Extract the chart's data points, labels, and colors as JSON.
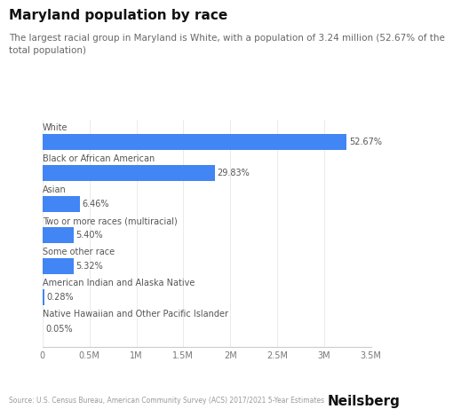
{
  "title": "Maryland population by race",
  "subtitle": "The largest racial group in Maryland is White, with a population of 3.24 million (52.67% of the\ntotal population)",
  "categories": [
    "White",
    "Black or African American",
    "Asian",
    "Two or more races (multiracial)",
    "Some other race",
    "American Indian and Alaska Native",
    "Native Hawaiian and Other Pacific Islander"
  ],
  "values": [
    3240000,
    1836000,
    397800,
    332400,
    327600,
    17220,
    3075
  ],
  "percentages": [
    "52.67%",
    "29.83%",
    "6.46%",
    "5.40%",
    "5.32%",
    "0.28%",
    "0.05%"
  ],
  "bar_color": "#4285F4",
  "background_color": "#ffffff",
  "xlim": [
    0,
    3500000
  ],
  "xticks": [
    0,
    500000,
    1000000,
    1500000,
    2000000,
    2500000,
    3000000,
    3500000
  ],
  "xtick_labels": [
    "0",
    "0.5M",
    "1M",
    "1.5M",
    "2M",
    "2.5M",
    "3M",
    "3.5M"
  ],
  "source_text": "Source: U.S. Census Bureau, American Community Survey (ACS) 2017/2021 5-Year Estimates",
  "brand_text": "Neilsberg",
  "title_fontsize": 11,
  "subtitle_fontsize": 7.5,
  "category_fontsize": 7,
  "pct_fontsize": 7,
  "tick_fontsize": 7,
  "source_fontsize": 5.5,
  "brand_fontsize": 11
}
